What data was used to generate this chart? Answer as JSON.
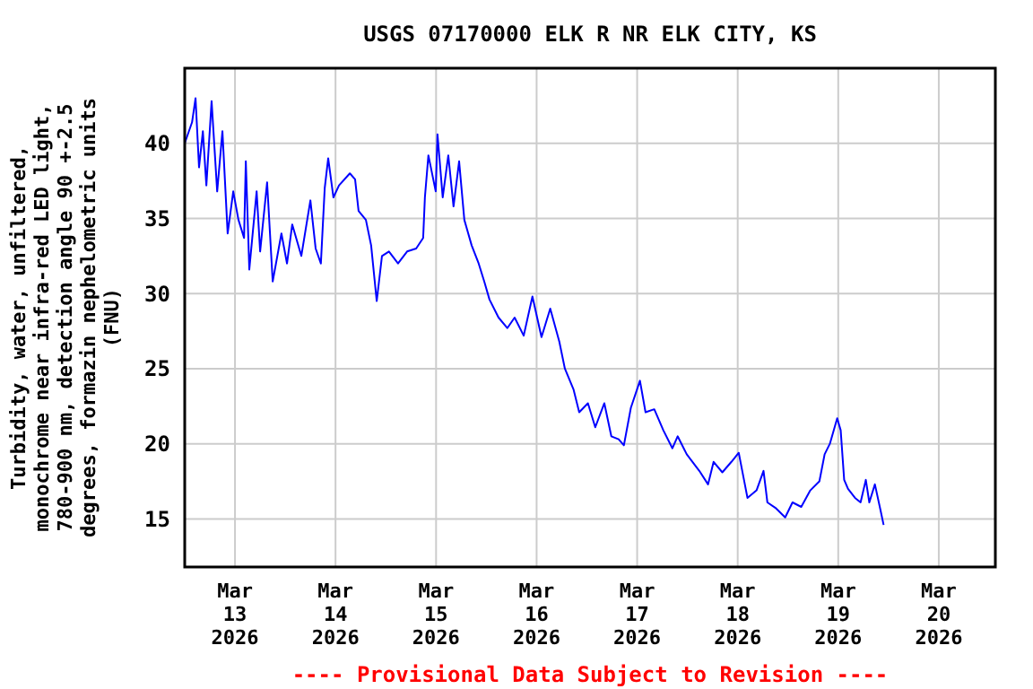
{
  "chart_data": {
    "type": "line",
    "title": "USGS 07170000 ELK R NR ELK CITY, KS",
    "ylabel": "Turbidity, water, unfiltered,\nmonochrome near infra-red LED light,\n780-900 nm, detection angle 90 +-2.5\ndegrees, formazin nephelometric units\n(FNU)",
    "annotations": [
      "---- Provisional Data Subject to Revision ----"
    ],
    "xlim": [
      "2026-03-12T12:00",
      "2026-03-20T13:30"
    ],
    "xticks": [
      {
        "value": "2026-03-13T00:00",
        "label": "Mar\n13\n2026"
      },
      {
        "value": "2026-03-14T00:00",
        "label": "Mar\n14\n2026"
      },
      {
        "value": "2026-03-15T00:00",
        "label": "Mar\n15\n2026"
      },
      {
        "value": "2026-03-16T00:00",
        "label": "Mar\n16\n2026"
      },
      {
        "value": "2026-03-17T00:00",
        "label": "Mar\n17\n2026"
      },
      {
        "value": "2026-03-18T00:00",
        "label": "Mar\n18\n2026"
      },
      {
        "value": "2026-03-19T00:00",
        "label": "Mar\n19\n2026"
      },
      {
        "value": "2026-03-20T00:00",
        "label": "Mar\n20\n2026"
      }
    ],
    "ylim": [
      11.8,
      45
    ],
    "yticks": [
      15,
      20,
      25,
      30,
      35,
      40
    ],
    "grid": true,
    "marker": "none",
    "line_style": "solid",
    "x": [
      "2026-03-12T12:00",
      "2026-03-12T13:45",
      "2026-03-12T14:35",
      "2026-03-12T15:25",
      "2026-03-12T16:20",
      "2026-03-12T17:10",
      "2026-03-12T18:25",
      "2026-03-12T19:45",
      "2026-03-12T21:00",
      "2026-03-12T22:15",
      "2026-03-12T23:35",
      "2026-03-13T00:50",
      "2026-03-13T02:10",
      "2026-03-13T02:35",
      "2026-03-13T03:25",
      "2026-03-13T05:10",
      "2026-03-13T06:00",
      "2026-03-13T07:40",
      "2026-03-13T09:00",
      "2026-03-13T11:05",
      "2026-03-13T12:25",
      "2026-03-13T13:40",
      "2026-03-13T15:50",
      "2026-03-13T18:00",
      "2026-03-13T19:15",
      "2026-03-13T20:30",
      "2026-03-13T21:25",
      "2026-03-13T22:15",
      "2026-03-13T23:30",
      "2026-03-14T00:50",
      "2026-03-14T03:25",
      "2026-03-14T04:40",
      "2026-03-14T05:30",
      "2026-03-14T07:15",
      "2026-03-14T08:30",
      "2026-03-14T09:50",
      "2026-03-14T11:05",
      "2026-03-14T12:45",
      "2026-03-14T14:55",
      "2026-03-14T17:05",
      "2026-03-14T19:15",
      "2026-03-14T20:55",
      "2026-03-14T21:20",
      "2026-03-14T22:10",
      "2026-03-14T23:55",
      "2026-03-15T00:20",
      "2026-03-15T01:35",
      "2026-03-15T02:55",
      "2026-03-15T04:10",
      "2026-03-15T05:30",
      "2026-03-15T06:45",
      "2026-03-15T08:30",
      "2026-03-15T10:10",
      "2026-03-15T11:30",
      "2026-03-15T12:45",
      "2026-03-15T14:55",
      "2026-03-15T17:00",
      "2026-03-15T18:45",
      "2026-03-15T20:55",
      "2026-03-15T23:00",
      "2026-03-16T01:10",
      "2026-03-16T03:15",
      "2026-03-16T05:25",
      "2026-03-16T06:45",
      "2026-03-16T08:50",
      "2026-03-16T10:10",
      "2026-03-16T12:15",
      "2026-03-16T14:00",
      "2026-03-16T16:10",
      "2026-03-16T17:50",
      "2026-03-16T19:35",
      "2026-03-16T20:50",
      "2026-03-16T22:30",
      "2026-03-17T00:40",
      "2026-03-17T02:00",
      "2026-03-17T04:05",
      "2026-03-17T06:15",
      "2026-03-17T08:25",
      "2026-03-17T09:40",
      "2026-03-17T11:50",
      "2026-03-17T14:50",
      "2026-03-17T16:55",
      "2026-03-17T18:15",
      "2026-03-17T20:20",
      "2026-03-17T22:30",
      "2026-03-18T00:15",
      "2026-03-18T01:30",
      "2026-03-18T02:20",
      "2026-03-18T04:30",
      "2026-03-18T06:10",
      "2026-03-18T07:05",
      "2026-03-18T09:10",
      "2026-03-18T11:20",
      "2026-03-18T13:05",
      "2026-03-18T15:10",
      "2026-03-18T17:20",
      "2026-03-18T19:30",
      "2026-03-18T20:45",
      "2026-03-18T22:00",
      "2026-03-18T23:45",
      "2026-03-19T00:35",
      "2026-03-19T01:25",
      "2026-03-19T02:20",
      "2026-03-19T04:00",
      "2026-03-19T05:20",
      "2026-03-19T06:35",
      "2026-03-19T07:25",
      "2026-03-19T08:45",
      "2026-03-19T10:00",
      "2026-03-19T10:50"
    ],
    "series": [
      {
        "color": "#0000ff",
        "values": [
          40.0,
          41.4,
          43.0,
          38.4,
          40.8,
          37.2,
          42.8,
          36.8,
          40.8,
          34.0,
          36.8,
          34.9,
          33.7,
          38.8,
          31.6,
          36.8,
          32.8,
          37.4,
          30.8,
          34.0,
          32.0,
          34.6,
          32.5,
          36.2,
          33.0,
          32.0,
          37.0,
          39.0,
          36.4,
          37.2,
          38.0,
          37.6,
          35.5,
          34.9,
          33.2,
          29.5,
          32.5,
          32.8,
          32.0,
          32.8,
          33.0,
          33.7,
          36.4,
          39.2,
          36.8,
          40.6,
          36.4,
          39.2,
          35.8,
          38.8,
          34.9,
          33.2,
          32.0,
          30.8,
          29.6,
          28.4,
          27.7,
          28.4,
          27.2,
          29.8,
          27.1,
          29.0,
          26.8,
          25.0,
          23.6,
          22.1,
          22.7,
          21.1,
          22.7,
          20.5,
          20.3,
          19.9,
          22.4,
          24.2,
          22.1,
          22.3,
          20.9,
          19.7,
          20.5,
          19.3,
          18.2,
          17.3,
          18.8,
          18.1,
          18.8,
          19.4,
          17.6,
          16.4,
          16.9,
          18.2,
          16.1,
          15.7,
          15.1,
          16.1,
          15.8,
          16.9,
          17.5,
          19.3,
          20.0,
          21.7,
          20.9,
          17.6,
          17.0,
          16.4,
          16.1,
          17.6,
          16.1,
          17.3,
          15.7,
          14.6
        ]
      }
    ]
  }
}
